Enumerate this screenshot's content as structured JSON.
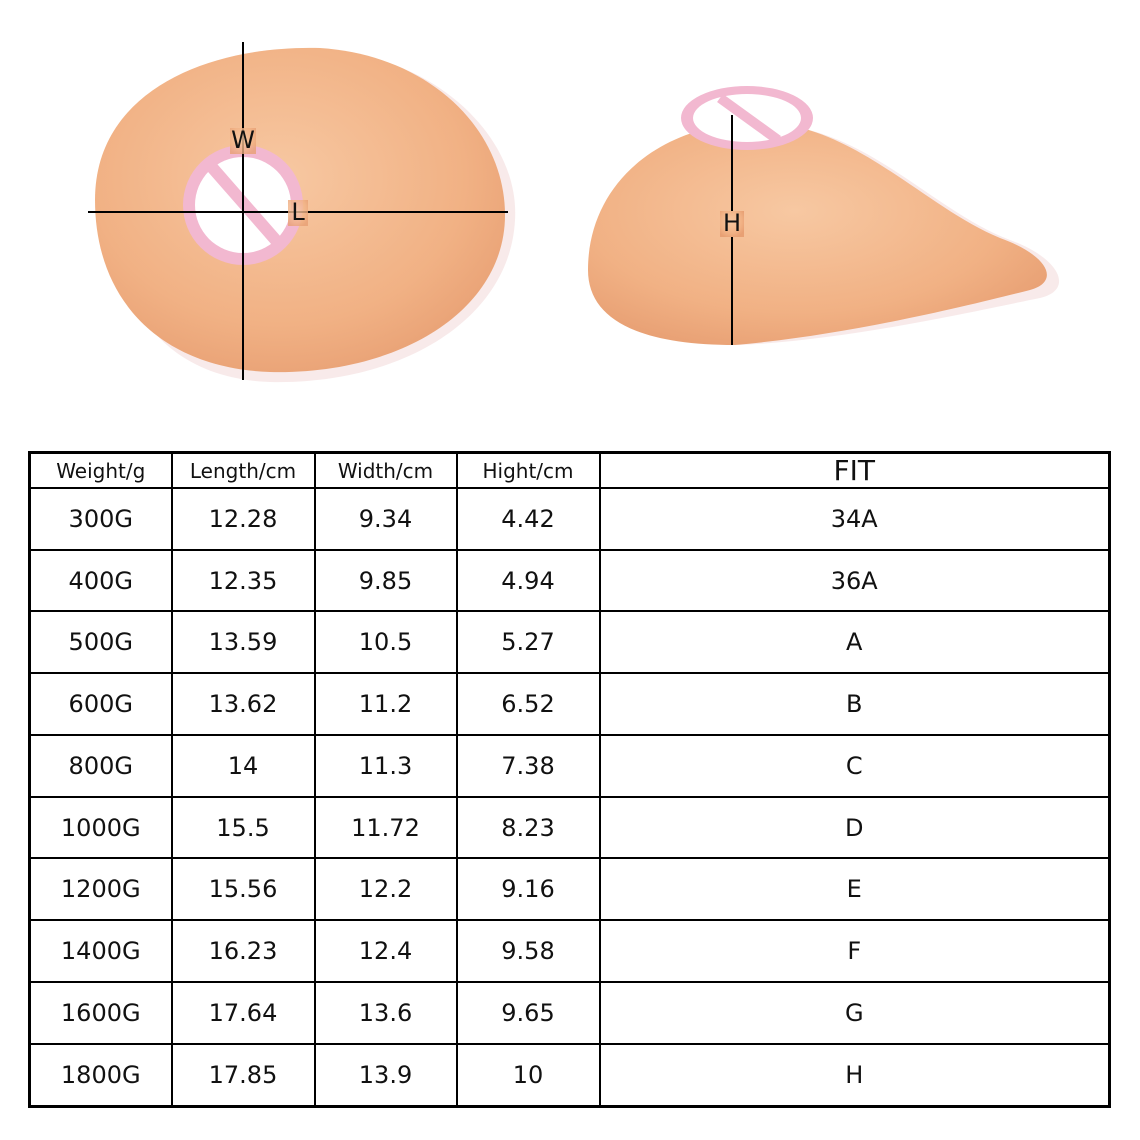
{
  "illustration": {
    "width_label": "W",
    "length_label": "L",
    "height_label": "H"
  },
  "table": {
    "headers": [
      "Weight/g",
      "Length/cm",
      "Width/cm",
      "Hight/cm",
      "FIT"
    ],
    "rows": [
      [
        "300G",
        "12.28",
        "9.34",
        "4.42",
        "34A"
      ],
      [
        "400G",
        "12.35",
        "9.85",
        "4.94",
        "36A"
      ],
      [
        "500G",
        "13.59",
        "10.5",
        "5.27",
        "A"
      ],
      [
        "600G",
        "13.62",
        "11.2",
        "6.52",
        "B"
      ],
      [
        "800G",
        "14",
        "11.3",
        "7.38",
        "C"
      ],
      [
        "1000G",
        "15.5",
        "11.72",
        "8.23",
        "D"
      ],
      [
        "1200G",
        "15.56",
        "12.2",
        "9.16",
        "E"
      ],
      [
        "1400G",
        "16.23",
        "12.4",
        "9.58",
        "F"
      ],
      [
        "1600G",
        "17.64",
        "13.6",
        "9.65",
        "G"
      ],
      [
        "1800G",
        "17.85",
        "13.9",
        "10",
        "H"
      ]
    ]
  }
}
